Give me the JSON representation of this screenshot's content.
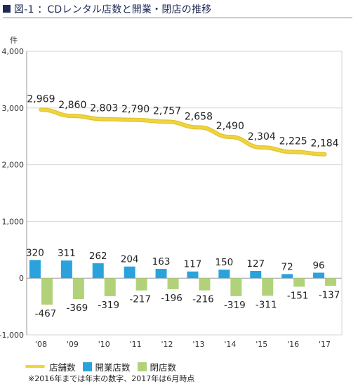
{
  "header": {
    "title": "図-1 ：CDレンタル店数と開業・閉店の推移"
  },
  "chart_data": {
    "type": "bar",
    "title": "図-1 ：CDレンタル店数と開業・閉店の推移",
    "ylabel": "件",
    "xlabel": "",
    "categories": [
      "'08",
      "'09",
      "'10",
      "'11",
      "'12",
      "'13",
      "'14",
      "'15",
      "'16",
      "'17"
    ],
    "ylim": [
      -1000,
      4000
    ],
    "yticks": [
      -1000,
      0,
      1000,
      2000,
      3000,
      4000
    ],
    "ytick_labels": [
      "-1,000",
      "0",
      "1,000",
      "2,000",
      "3,000",
      "4,000"
    ],
    "grid": true,
    "legend_position": "bottom",
    "series": [
      {
        "name": "店舗数",
        "type": "line",
        "color": "#f0d43e",
        "values": [
          2969,
          2860,
          2803,
          2790,
          2757,
          2658,
          2490,
          2304,
          2225,
          2184
        ],
        "labels": [
          "2,969",
          "2,860",
          "2,803",
          "2,790",
          "2,757",
          "2,658",
          "2,490",
          "2,304",
          "2,225",
          "2,184"
        ]
      },
      {
        "name": "開業店数",
        "type": "bar",
        "color": "#2aa3dc",
        "values": [
          320,
          311,
          262,
          204,
          163,
          117,
          150,
          127,
          72,
          96
        ],
        "labels": [
          "320",
          "311",
          "262",
          "204",
          "163",
          "117",
          "150",
          "127",
          "72",
          "96"
        ]
      },
      {
        "name": "閉店数",
        "type": "bar",
        "color": "#b2d27a",
        "values": [
          -467,
          -369,
          -319,
          -217,
          -196,
          -216,
          -319,
          -311,
          -151,
          -137
        ],
        "labels": [
          "-467",
          "-369",
          "-319",
          "-217",
          "-196",
          "-216",
          "-319",
          "-311",
          "-151",
          "-137"
        ]
      }
    ],
    "note": "※2016年までは年末の数字、2017年は6月時点"
  }
}
